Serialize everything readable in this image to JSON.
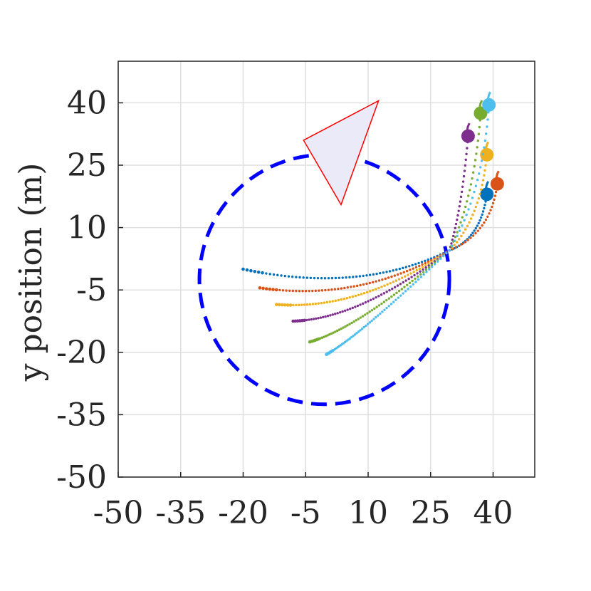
{
  "chart_data": {
    "type": "scatter",
    "title": "",
    "xlabel": "",
    "ylabel": "y position (m)",
    "xlim": [
      -50,
      50
    ],
    "ylim": [
      -50,
      50
    ],
    "xticks": [
      "-50",
      "-35",
      "-20",
      "-5",
      "10",
      "25",
      "40"
    ],
    "yticks": [
      "40",
      "25",
      "10",
      "-5",
      "-20",
      "-35",
      "-50"
    ],
    "grid": true,
    "legend": "none",
    "circle": {
      "center": [
        -0.5,
        -2.5
      ],
      "radius": 30,
      "color": "#0000ff",
      "style": "dashed"
    },
    "triangle": {
      "vertices": [
        [
          -5.5,
          31
        ],
        [
          12.5,
          40.5
        ],
        [
          3.5,
          15.5
        ]
      ],
      "edge_color": "#ff0000",
      "fill_color": "#eaeaf8"
    },
    "convergence_point": [
      29.5,
      4.5
    ],
    "series": [
      {
        "color": "#0072bd",
        "start": [
          -20,
          0
        ],
        "via": [
          8,
          -6
        ],
        "end": [
          38.5,
          18
        ]
      },
      {
        "color": "#d95319",
        "start": [
          -16,
          -4.5
        ],
        "via": [
          8,
          -8
        ],
        "end": [
          41,
          20.5
        ]
      },
      {
        "color": "#edb120",
        "start": [
          -12,
          -8.5
        ],
        "via": [
          8,
          -10
        ],
        "end": [
          38.5,
          27.5
        ]
      },
      {
        "color": "#7e2f8e",
        "start": [
          -8,
          -12.5
        ],
        "via": [
          8,
          -12
        ],
        "end": [
          34,
          32
        ]
      },
      {
        "color": "#77ac30",
        "start": [
          -4,
          -17.5
        ],
        "via": [
          8,
          -14
        ],
        "end": [
          37,
          37.5
        ]
      },
      {
        "color": "#4dbeee",
        "start": [
          0,
          -20.5
        ],
        "via": [
          8,
          -16
        ],
        "end": [
          39,
          39.5
        ]
      }
    ]
  }
}
